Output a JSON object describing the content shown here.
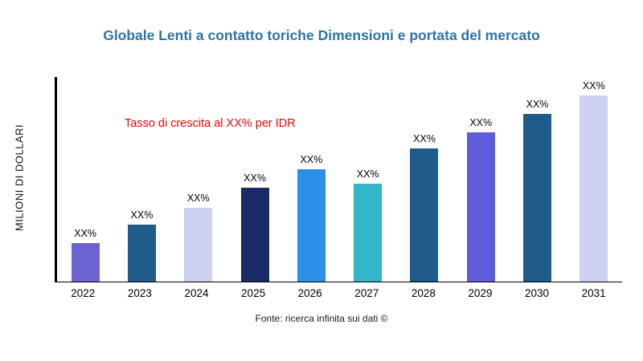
{
  "title": "Globale Lenti a contatto toriche Dimensioni e portata del mercato",
  "y_axis_label": "MILIONI DI DOLLARI",
  "annotation_text": "Tasso di crescita al XX% per IDR",
  "source_text": "Fonte: ricerca infinita sui dati ©",
  "colors": {
    "title": "#2e75a8",
    "annotation": "#f40000",
    "axis": "#000000",
    "background": "#ffffff"
  },
  "chart_data": {
    "type": "bar",
    "title": "Globale Lenti a contatto toriche Dimensioni e portata del mercato",
    "xlabel": "",
    "ylabel": "MILIONI DI DOLLARI",
    "ylim": [
      0,
      100
    ],
    "grid": false,
    "legend": "none",
    "categories": [
      "2022",
      "2023",
      "2024",
      "2025",
      "2026",
      "2027",
      "2028",
      "2029",
      "2030",
      "2031"
    ],
    "values": [
      19,
      28,
      36,
      46,
      55,
      48,
      65,
      73,
      82,
      91
    ],
    "values_note": "numeric values are redacted in the source image as XX%; these are relative bar heights (percent of plot height)",
    "bar_labels": [
      "XX%",
      "XX%",
      "XX%",
      "XX%",
      "XX%",
      "XX%",
      "XX%",
      "XX%",
      "XX%",
      "XX%"
    ],
    "bar_colors": [
      "#6c63d2",
      "#1f5c8b",
      "#ccd2f0",
      "#1b2a66",
      "#2d8fe8",
      "#33b6c9",
      "#1f5c8b",
      "#5f5ddb",
      "#1f5c8b",
      "#ccd2f0"
    ],
    "annotation": {
      "text": "Tasso di crescita al XX% per IDR",
      "color": "#f40000"
    }
  }
}
